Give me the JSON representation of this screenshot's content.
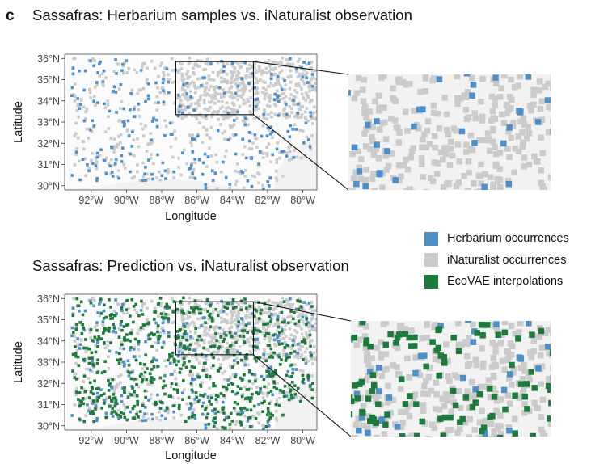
{
  "panel_label": "c",
  "colors": {
    "herbarium": "#4f8fc9",
    "inaturalist": "#cbcbcb",
    "ecovae": "#1e7a3c",
    "map_bg": "#f2f2f2",
    "land_bg": "#fbfbfb",
    "frame": "#222222"
  },
  "chart_data": [
    {
      "type": "scatter",
      "title": "Sassafras: Herbarium samples vs. iNaturalist observation",
      "xlabel": "Longitude",
      "ylabel": "Latitude",
      "x_ticks": [
        -92,
        -90,
        -88,
        -86,
        -84,
        -82,
        -80
      ],
      "x_tick_labels": [
        "92°W",
        "90°W",
        "88°W",
        "86°W",
        "84°W",
        "82°W",
        "80°W"
      ],
      "y_ticks": [
        30,
        31,
        32,
        33,
        34,
        35,
        36
      ],
      "y_tick_labels": [
        "30°N",
        "31°N",
        "32°N",
        "33°N",
        "34°N",
        "35°N",
        "36°N"
      ],
      "xlim": [
        -93.5,
        -79.2
      ],
      "ylim": [
        29.8,
        36.2
      ],
      "inset_region": {
        "lon": [
          -87.2,
          -82.8
        ],
        "lat": [
          33.35,
          35.85
        ]
      },
      "series": [
        {
          "name": "iNaturalist occurrences",
          "seed": 11,
          "count": 900,
          "concentrated_northeast": true
        },
        {
          "name": "Herbarium occurrences",
          "seed": 27,
          "count": 260
        }
      ]
    },
    {
      "type": "scatter",
      "title": "Sassafras: Prediction vs. iNaturalist observation",
      "xlabel": "Longitude",
      "ylabel": "Latitude",
      "x_ticks": [
        -92,
        -90,
        -88,
        -86,
        -84,
        -82,
        -80
      ],
      "x_tick_labels": [
        "92°W",
        "90°W",
        "88°W",
        "86°W",
        "84°W",
        "82°W",
        "80°W"
      ],
      "y_ticks": [
        30,
        31,
        32,
        33,
        34,
        35,
        36
      ],
      "y_tick_labels": [
        "30°N",
        "31°N",
        "32°N",
        "33°N",
        "34°N",
        "35°N",
        "36°N"
      ],
      "xlim": [
        -93.5,
        -79.2
      ],
      "ylim": [
        29.8,
        36.2
      ],
      "inset_region": {
        "lon": [
          -87.2,
          -82.8
        ],
        "lat": [
          33.35,
          35.85
        ]
      },
      "series": [
        {
          "name": "iNaturalist occurrences",
          "seed": 11,
          "count": 900,
          "concentrated_northeast": true
        },
        {
          "name": "Herbarium occurrences",
          "seed": 27,
          "count": 260
        },
        {
          "name": "EcoVAE interpolations",
          "seed": 53,
          "count": 700
        }
      ]
    }
  ],
  "legend": [
    {
      "label": "Herbarium occurrences",
      "color_key": "herbarium"
    },
    {
      "label": "iNaturalist occurrences",
      "color_key": "inaturalist"
    },
    {
      "label": "EcoVAE interpolations",
      "color_key": "ecovae"
    }
  ]
}
